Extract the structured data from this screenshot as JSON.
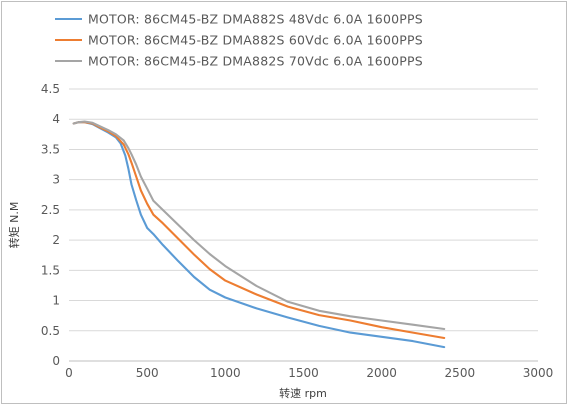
{
  "chart_data": {
    "type": "line",
    "title": "",
    "xlabel": "转速 rpm",
    "ylabel": "转矩 N.M",
    "xlim": [
      0,
      3000
    ],
    "ylim": [
      0,
      4.5
    ],
    "x_ticks": [
      "0",
      "500",
      "1000",
      "1500",
      "2000",
      "2500",
      "3000"
    ],
    "y_ticks": [
      "0",
      "0.5",
      "1",
      "1.5",
      "2",
      "2.5",
      "3",
      "3.5",
      "4",
      "4.5"
    ],
    "grid": "horizontal",
    "legend_position": "top-left",
    "series": [
      {
        "name": "MOTOR: 86CM45-BZ  DMA882S  48Vdc  6.0A  1600PPS",
        "color": "#5b9bd5",
        "x": [
          30,
          60,
          100,
          150,
          200,
          250,
          300,
          330,
          360,
          380,
          400,
          430,
          460,
          500,
          540,
          600,
          700,
          800,
          900,
          1000,
          1200,
          1400,
          1600,
          1800,
          2000,
          2200,
          2400
        ],
        "y": [
          3.93,
          3.95,
          3.95,
          3.92,
          3.85,
          3.78,
          3.7,
          3.6,
          3.4,
          3.18,
          2.92,
          2.66,
          2.42,
          2.2,
          2.1,
          1.92,
          1.65,
          1.39,
          1.18,
          1.05,
          0.87,
          0.72,
          0.58,
          0.47,
          0.4,
          0.33,
          0.23
        ]
      },
      {
        "name": "MOTOR: 86CM45-BZ  DMA882S  60Vdc  6.0A  1600PPS",
        "color": "#ed7d31",
        "x": [
          30,
          60,
          100,
          150,
          200,
          250,
          300,
          350,
          380,
          400,
          430,
          460,
          500,
          540,
          600,
          700,
          800,
          900,
          1000,
          1200,
          1400,
          1600,
          1800,
          2000,
          2200,
          2400
        ],
        "y": [
          3.93,
          3.95,
          3.95,
          3.93,
          3.86,
          3.8,
          3.72,
          3.58,
          3.42,
          3.28,
          3.05,
          2.82,
          2.6,
          2.42,
          2.28,
          2.02,
          1.76,
          1.52,
          1.33,
          1.1,
          0.9,
          0.76,
          0.67,
          0.56,
          0.47,
          0.38
        ]
      },
      {
        "name": "MOTOR: 86CM45-BZ  DMA882S  70Vdc  6.0A  1600PPS",
        "color": "#a5a5a5",
        "x": [
          30,
          60,
          100,
          150,
          200,
          250,
          300,
          350,
          380,
          400,
          430,
          460,
          500,
          540,
          600,
          700,
          800,
          900,
          1000,
          1200,
          1400,
          1600,
          1800,
          2000,
          2200,
          2400
        ],
        "y": [
          3.93,
          3.95,
          3.96,
          3.94,
          3.88,
          3.82,
          3.75,
          3.65,
          3.52,
          3.42,
          3.25,
          3.05,
          2.85,
          2.65,
          2.5,
          2.25,
          2.0,
          1.77,
          1.57,
          1.24,
          0.98,
          0.83,
          0.74,
          0.67,
          0.6,
          0.53
        ]
      }
    ]
  }
}
